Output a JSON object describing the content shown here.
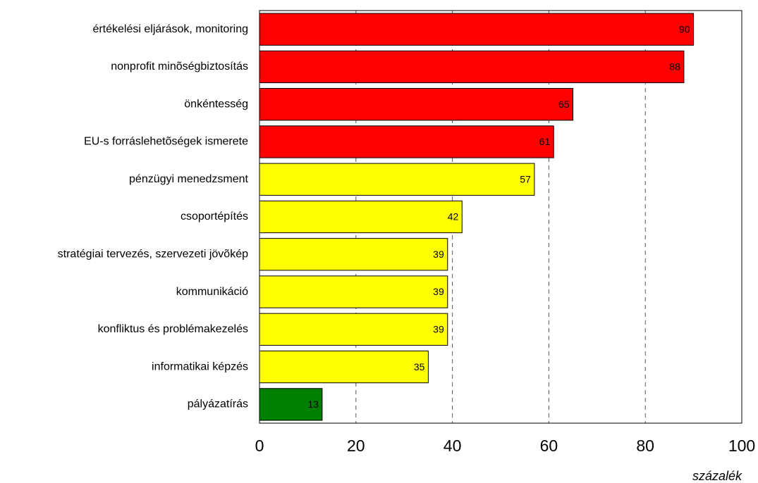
{
  "chart_data": {
    "type": "bar",
    "orientation": "horizontal",
    "categories": [
      "értékelési eljárások, monitoring",
      "nonprofit minõségbiztosítás",
      "önkéntesség",
      "EU-s forráslehetõségek ismerete",
      "pénzügyi menedzsment",
      "csoportépítés",
      "stratégiai tervezés, szervezeti jövõkép",
      "kommunikáció",
      "konfliktus és problémakezelés",
      "informatikai képzés",
      "pályázatírás"
    ],
    "values": [
      90,
      88,
      65,
      61,
      57,
      42,
      39,
      39,
      39,
      35,
      13
    ],
    "colors": [
      "#ff0000",
      "#ff0000",
      "#ff0000",
      "#ff0000",
      "#ffff00",
      "#ffff00",
      "#ffff00",
      "#ffff00",
      "#ffff00",
      "#ffff00",
      "#008000"
    ],
    "xlim": [
      0,
      100
    ],
    "xticks": [
      0,
      20,
      40,
      60,
      80,
      100
    ],
    "x_label": "százalék",
    "grid": true,
    "grid_style": "dashed"
  }
}
